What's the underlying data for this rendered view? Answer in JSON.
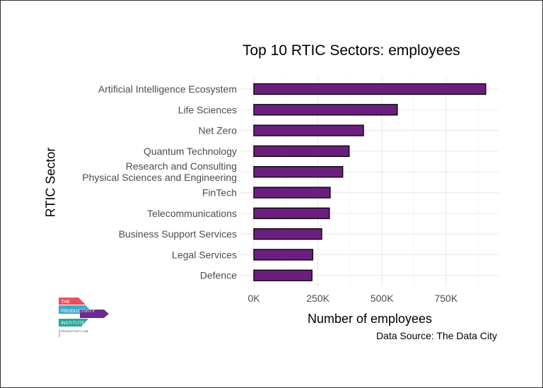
{
  "chart_data": {
    "type": "bar",
    "orientation": "horizontal",
    "title": "Top 10 RTIC Sectors: employees",
    "xlabel": "Number of employees",
    "ylabel": "RTIC Sector",
    "caption": "Data Source: The Data City",
    "categories": [
      "Artificial Intelligence Ecosystem",
      "Life Sciences",
      "Net Zero",
      "Quantum Technology",
      "Research and Consulting\nPhysical Sciences and Engineering",
      "FinTech",
      "Telecommunications",
      "Business Support Services",
      "Legal Services",
      "Defence"
    ],
    "values": [
      905000,
      560000,
      428000,
      372000,
      347000,
      298000,
      295000,
      265000,
      230000,
      227000
    ],
    "xlim": [
      0,
      950000
    ],
    "xticks": [
      0,
      250000,
      500000,
      750000
    ],
    "xtick_labels": [
      "0K",
      "250K",
      "500K",
      "750K"
    ],
    "grid": true,
    "colors": {
      "bar_fill": "#6a1f7f",
      "bar_stroke": "#000000",
      "grid": "#ebebeb"
    }
  },
  "logo": {
    "lines": [
      "THE",
      "PRODUCTIVITY",
      "INSTITUTE"
    ],
    "sub": "PRODUCTIVITY LAB",
    "colors": [
      "#e8525f",
      "#3fa9c9",
      "#6a2c91",
      "#2aa59a"
    ]
  }
}
